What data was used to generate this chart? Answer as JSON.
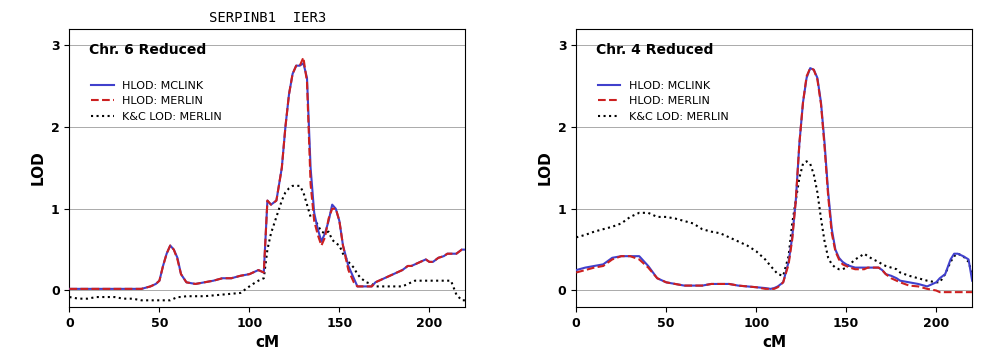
{
  "title": "SERPINB1  IER3",
  "title_fontsize": 10,
  "panel1_title": "Chr. 6 Reduced",
  "panel2_title": "Chr. 4 Reduced",
  "xlabel": "cM",
  "ylabel": "LOD",
  "xlim": [
    0,
    220
  ],
  "ylim": [
    -0.2,
    3.2
  ],
  "yticks": [
    0,
    1,
    2,
    3
  ],
  "xticks": [
    0,
    50,
    100,
    150,
    200
  ],
  "legend_labels": [
    "HLOD: MCLINK",
    "HLOD: MERLIN",
    "K&C LOD: MERLIN"
  ],
  "line1_color": "#4040cc",
  "line2_color": "#cc2020",
  "line3_color": "#000000",
  "background_color": "#ffffff",
  "chr6_mclink_x": [
    0,
    5,
    10,
    15,
    20,
    25,
    30,
    35,
    40,
    45,
    48,
    50,
    52,
    54,
    56,
    58,
    60,
    62,
    65,
    70,
    75,
    80,
    85,
    90,
    95,
    100,
    102,
    105,
    108,
    110,
    112,
    115,
    118,
    120,
    122,
    124,
    126,
    128,
    130,
    132,
    134,
    136,
    138,
    140,
    142,
    144,
    146,
    148,
    150,
    152,
    155,
    158,
    160,
    162,
    165,
    168,
    170,
    172,
    175,
    178,
    180,
    182,
    185,
    188,
    190,
    192,
    195,
    198,
    200,
    202,
    205,
    208,
    210,
    212,
    215,
    218,
    220
  ],
  "chr6_mclink_y": [
    0.02,
    0.02,
    0.02,
    0.02,
    0.02,
    0.02,
    0.02,
    0.02,
    0.02,
    0.05,
    0.08,
    0.12,
    0.3,
    0.45,
    0.55,
    0.5,
    0.4,
    0.2,
    0.1,
    0.08,
    0.1,
    0.12,
    0.15,
    0.15,
    0.18,
    0.2,
    0.22,
    0.25,
    0.22,
    1.1,
    1.05,
    1.1,
    1.5,
    2.0,
    2.4,
    2.65,
    2.75,
    2.75,
    2.78,
    2.6,
    1.5,
    0.95,
    0.75,
    0.6,
    0.7,
    0.85,
    1.05,
    1.0,
    0.85,
    0.55,
    0.3,
    0.15,
    0.05,
    0.05,
    0.05,
    0.05,
    0.1,
    0.12,
    0.15,
    0.18,
    0.2,
    0.22,
    0.25,
    0.3,
    0.3,
    0.32,
    0.35,
    0.38,
    0.35,
    0.35,
    0.4,
    0.42,
    0.45,
    0.45,
    0.45,
    0.5,
    0.5
  ],
  "chr6_merlin_x": [
    0,
    5,
    10,
    15,
    20,
    25,
    30,
    35,
    40,
    45,
    48,
    50,
    52,
    54,
    56,
    58,
    60,
    62,
    65,
    70,
    75,
    80,
    85,
    90,
    95,
    100,
    102,
    105,
    108,
    110,
    112,
    115,
    118,
    120,
    122,
    124,
    126,
    128,
    130,
    132,
    134,
    136,
    138,
    140,
    142,
    144,
    146,
    148,
    150,
    152,
    155,
    158,
    160,
    162,
    165,
    168,
    170,
    172,
    175,
    178,
    180,
    182,
    185,
    188,
    190,
    192,
    195,
    198,
    200,
    202,
    205,
    208,
    210,
    212,
    215,
    218,
    220
  ],
  "chr6_merlin_y": [
    0.02,
    0.02,
    0.02,
    0.02,
    0.02,
    0.02,
    0.02,
    0.02,
    0.02,
    0.05,
    0.08,
    0.12,
    0.3,
    0.45,
    0.55,
    0.5,
    0.38,
    0.2,
    0.1,
    0.08,
    0.1,
    0.12,
    0.15,
    0.15,
    0.18,
    0.2,
    0.22,
    0.25,
    0.22,
    1.1,
    1.05,
    1.1,
    1.5,
    2.0,
    2.4,
    2.65,
    2.75,
    2.75,
    2.85,
    2.55,
    1.3,
    0.85,
    0.68,
    0.55,
    0.65,
    0.88,
    1.0,
    1.0,
    0.85,
    0.55,
    0.25,
    0.1,
    0.05,
    0.05,
    0.05,
    0.05,
    0.1,
    0.12,
    0.15,
    0.18,
    0.2,
    0.22,
    0.25,
    0.3,
    0.3,
    0.32,
    0.35,
    0.38,
    0.35,
    0.35,
    0.4,
    0.42,
    0.45,
    0.45,
    0.45,
    0.5,
    0.5
  ],
  "chr6_kc_x": [
    0,
    5,
    10,
    15,
    20,
    25,
    30,
    35,
    40,
    45,
    48,
    50,
    52,
    54,
    56,
    58,
    60,
    62,
    65,
    70,
    75,
    80,
    85,
    90,
    95,
    100,
    102,
    105,
    108,
    110,
    112,
    115,
    118,
    120,
    122,
    124,
    126,
    128,
    130,
    132,
    134,
    136,
    138,
    140,
    142,
    144,
    146,
    148,
    150,
    152,
    155,
    158,
    160,
    162,
    165,
    168,
    170,
    172,
    175,
    178,
    180,
    182,
    185,
    188,
    190,
    192,
    195,
    198,
    200,
    202,
    205,
    208,
    210,
    212,
    215,
    218,
    220
  ],
  "chr6_kc_y": [
    -0.08,
    -0.1,
    -0.1,
    -0.08,
    -0.08,
    -0.08,
    -0.1,
    -0.1,
    -0.12,
    -0.12,
    -0.12,
    -0.12,
    -0.12,
    -0.12,
    -0.12,
    -0.1,
    -0.08,
    -0.08,
    -0.07,
    -0.07,
    -0.07,
    -0.06,
    -0.05,
    -0.04,
    -0.03,
    0.05,
    0.08,
    0.12,
    0.15,
    0.5,
    0.7,
    0.9,
    1.1,
    1.2,
    1.25,
    1.28,
    1.28,
    1.28,
    1.2,
    1.05,
    0.9,
    0.88,
    0.8,
    0.72,
    0.7,
    0.72,
    0.62,
    0.58,
    0.55,
    0.45,
    0.35,
    0.28,
    0.2,
    0.15,
    0.1,
    0.08,
    0.05,
    0.05,
    0.05,
    0.05,
    0.05,
    0.05,
    0.05,
    0.08,
    0.1,
    0.12,
    0.12,
    0.12,
    0.12,
    0.12,
    0.12,
    0.12,
    0.12,
    0.12,
    -0.05,
    -0.12,
    -0.12
  ],
  "chr4_mclink_x": [
    0,
    5,
    10,
    15,
    20,
    25,
    30,
    35,
    40,
    45,
    50,
    55,
    60,
    65,
    70,
    75,
    80,
    85,
    90,
    95,
    100,
    105,
    108,
    110,
    112,
    115,
    118,
    120,
    122,
    124,
    126,
    128,
    130,
    132,
    134,
    136,
    138,
    140,
    142,
    144,
    146,
    148,
    150,
    152,
    155,
    158,
    160,
    162,
    165,
    168,
    170,
    172,
    175,
    178,
    180,
    185,
    190,
    195,
    200,
    202,
    205,
    208,
    210,
    212,
    215,
    218,
    220
  ],
  "chr4_mclink_y": [
    0.25,
    0.28,
    0.3,
    0.32,
    0.4,
    0.42,
    0.42,
    0.42,
    0.3,
    0.15,
    0.1,
    0.08,
    0.06,
    0.06,
    0.06,
    0.08,
    0.08,
    0.08,
    0.06,
    0.05,
    0.04,
    0.03,
    0.02,
    0.03,
    0.05,
    0.1,
    0.35,
    0.65,
    1.1,
    1.8,
    2.3,
    2.6,
    2.72,
    2.7,
    2.6,
    2.3,
    1.8,
    1.2,
    0.75,
    0.5,
    0.4,
    0.35,
    0.32,
    0.3,
    0.28,
    0.28,
    0.28,
    0.28,
    0.28,
    0.28,
    0.25,
    0.2,
    0.18,
    0.15,
    0.12,
    0.1,
    0.08,
    0.05,
    0.1,
    0.15,
    0.2,
    0.38,
    0.45,
    0.45,
    0.42,
    0.38,
    0.12
  ],
  "chr4_merlin_x": [
    0,
    5,
    10,
    15,
    20,
    25,
    30,
    35,
    40,
    45,
    50,
    55,
    60,
    65,
    70,
    75,
    80,
    85,
    90,
    95,
    100,
    105,
    108,
    110,
    112,
    115,
    118,
    120,
    122,
    124,
    126,
    128,
    130,
    132,
    134,
    136,
    138,
    140,
    142,
    144,
    146,
    148,
    150,
    152,
    155,
    158,
    160,
    162,
    165,
    168,
    170,
    172,
    175,
    178,
    180,
    185,
    190,
    195,
    200,
    202,
    205,
    208,
    210,
    212,
    215,
    218,
    220
  ],
  "chr4_merlin_y": [
    0.22,
    0.25,
    0.28,
    0.3,
    0.38,
    0.42,
    0.42,
    0.38,
    0.28,
    0.15,
    0.1,
    0.08,
    0.06,
    0.06,
    0.06,
    0.08,
    0.08,
    0.08,
    0.06,
    0.05,
    0.04,
    0.02,
    0.02,
    0.02,
    0.04,
    0.1,
    0.32,
    0.62,
    1.1,
    1.8,
    2.3,
    2.62,
    2.72,
    2.7,
    2.58,
    2.28,
    1.75,
    1.15,
    0.7,
    0.48,
    0.38,
    0.32,
    0.3,
    0.28,
    0.26,
    0.26,
    0.26,
    0.28,
    0.28,
    0.28,
    0.25,
    0.2,
    0.15,
    0.12,
    0.1,
    0.06,
    0.05,
    0.02,
    0.0,
    -0.02,
    -0.02,
    -0.02,
    -0.02,
    -0.02,
    -0.02,
    -0.02,
    -0.02
  ],
  "chr4_kc_x": [
    0,
    5,
    10,
    15,
    20,
    25,
    30,
    35,
    40,
    45,
    50,
    55,
    60,
    65,
    70,
    75,
    80,
    85,
    90,
    95,
    100,
    105,
    108,
    110,
    112,
    115,
    118,
    120,
    122,
    124,
    126,
    128,
    130,
    132,
    134,
    136,
    138,
    140,
    142,
    144,
    146,
    148,
    150,
    152,
    155,
    158,
    160,
    162,
    165,
    168,
    170,
    172,
    175,
    178,
    180,
    185,
    190,
    195,
    200,
    202,
    205,
    208,
    210,
    212,
    215,
    218,
    220
  ],
  "chr4_kc_y": [
    0.65,
    0.68,
    0.72,
    0.75,
    0.78,
    0.82,
    0.9,
    0.95,
    0.95,
    0.9,
    0.9,
    0.88,
    0.85,
    0.82,
    0.75,
    0.72,
    0.7,
    0.65,
    0.6,
    0.55,
    0.48,
    0.38,
    0.3,
    0.25,
    0.2,
    0.18,
    0.42,
    0.82,
    1.1,
    1.38,
    1.55,
    1.58,
    1.55,
    1.42,
    1.2,
    0.88,
    0.6,
    0.4,
    0.32,
    0.28,
    0.26,
    0.26,
    0.28,
    0.32,
    0.38,
    0.42,
    0.45,
    0.42,
    0.38,
    0.35,
    0.32,
    0.3,
    0.28,
    0.26,
    0.22,
    0.18,
    0.15,
    0.12,
    0.1,
    0.1,
    0.2,
    0.35,
    0.42,
    0.45,
    0.42,
    0.35,
    0.2
  ]
}
